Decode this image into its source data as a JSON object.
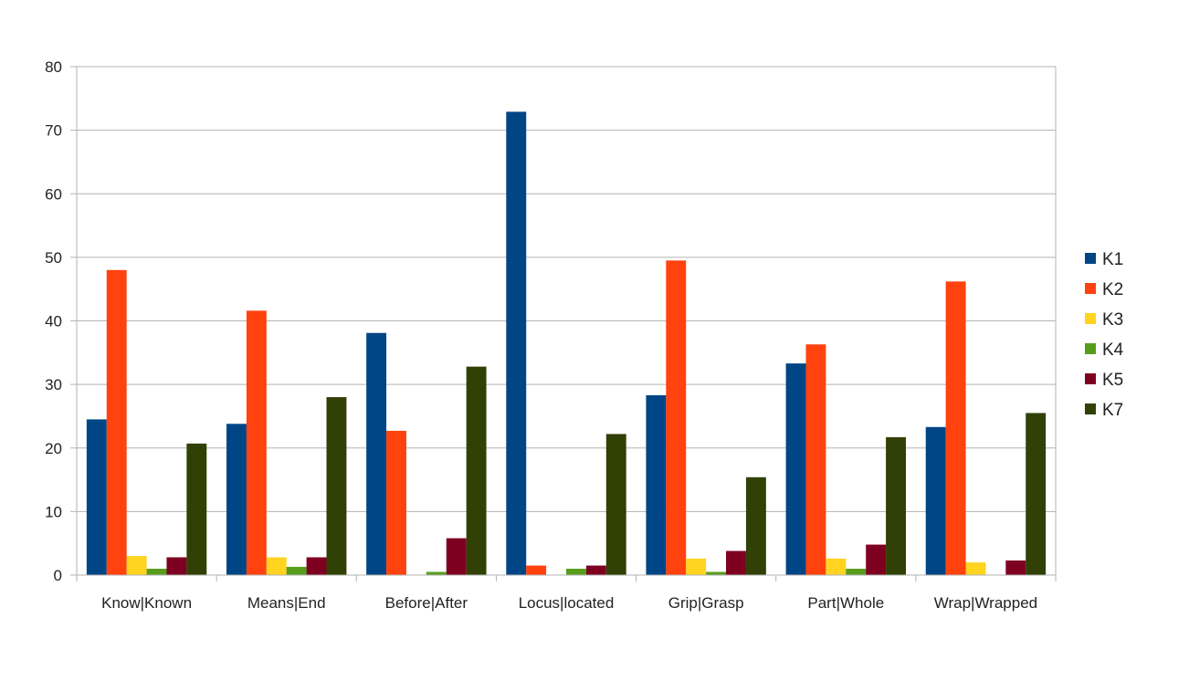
{
  "chart_data": {
    "type": "bar",
    "title": "",
    "xlabel": "",
    "ylabel": "",
    "ylim": [
      0,
      80
    ],
    "yticks": [
      0,
      10,
      20,
      30,
      40,
      50,
      60,
      70,
      80
    ],
    "grid": true,
    "legend_position": "right",
    "categories": [
      "Know|Known",
      "Means|End",
      "Before|After",
      "Locus|located",
      "Grip|Grasp",
      "Part|Whole",
      "Wrap|Wrapped"
    ],
    "series": [
      {
        "name": "K1",
        "color": "#004586",
        "values": [
          24.5,
          23.8,
          38.1,
          72.9,
          28.3,
          33.3,
          23.3
        ]
      },
      {
        "name": "K2",
        "color": "#ff420e",
        "values": [
          48.0,
          41.6,
          22.7,
          1.5,
          49.5,
          36.3,
          46.2
        ]
      },
      {
        "name": "K3",
        "color": "#ffd320",
        "values": [
          3.0,
          2.8,
          0.0,
          0.0,
          2.6,
          2.6,
          2.0
        ]
      },
      {
        "name": "K4",
        "color": "#579d1c",
        "values": [
          1.0,
          1.3,
          0.5,
          1.0,
          0.5,
          1.0,
          0.0
        ]
      },
      {
        "name": "K5",
        "color": "#7e0021",
        "values": [
          2.8,
          2.8,
          5.8,
          1.5,
          3.8,
          4.8,
          2.3
        ]
      },
      {
        "name": "K7",
        "color": "#314004",
        "values": [
          20.7,
          28.0,
          32.8,
          22.2,
          15.4,
          21.7,
          25.5
        ]
      }
    ]
  }
}
